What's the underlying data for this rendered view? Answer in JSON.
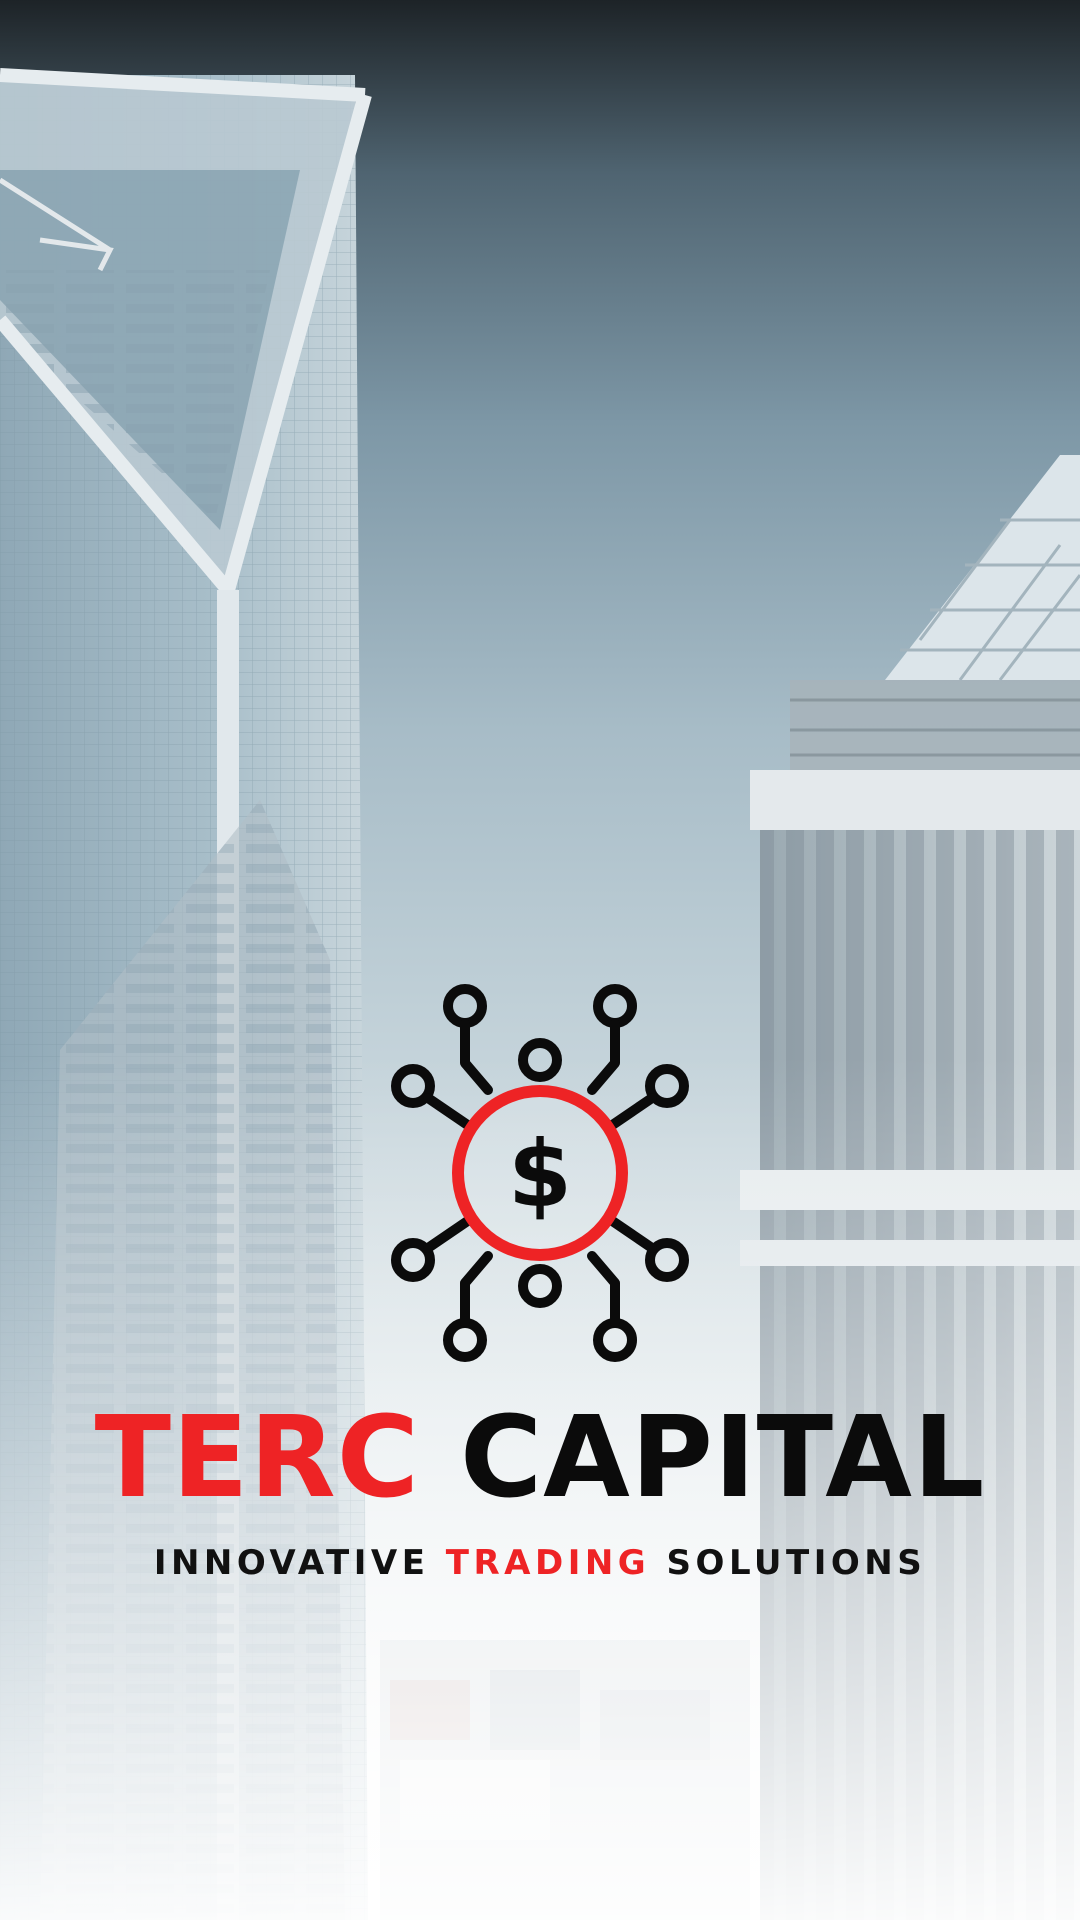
{
  "brand": {
    "name_part1": "TERC",
    "name_part2": "CAPITAL",
    "tagline_part1": "INNOVATIVE",
    "tagline_part2": "TRADING",
    "tagline_part3": "SOLUTIONS"
  },
  "logo": {
    "icon": "dollar-network-icon",
    "symbol": "$"
  },
  "colors": {
    "accent": "#ee2325",
    "text": "#0b0b0b"
  }
}
